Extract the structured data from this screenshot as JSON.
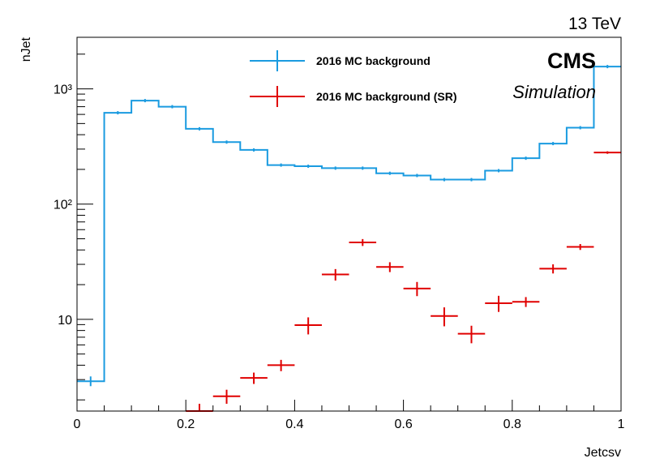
{
  "energy_label": "13 TeV",
  "experiment": "CMS",
  "sublabel": "Simulation",
  "chart_data": {
    "type": "histogram",
    "xlabel": "Jetcsv",
    "ylabel": "nJet",
    "xlim": [
      0,
      1
    ],
    "ylim": [
      1.6,
      2800
    ],
    "yscale": "log",
    "grid": false,
    "legend_position": "top-center",
    "x_ticks": [
      "0",
      "0.2",
      "0.4",
      "0.6",
      "0.8",
      "1"
    ],
    "y_ticks": [
      {
        "value": 10,
        "label": "10"
      },
      {
        "value": 100,
        "label": "10²"
      },
      {
        "value": 1000,
        "label": "10³"
      }
    ],
    "bin_edges": [
      0,
      0.05,
      0.1,
      0.15,
      0.2,
      0.25,
      0.3,
      0.35,
      0.4,
      0.45,
      0.5,
      0.55,
      0.6,
      0.65,
      0.7,
      0.75,
      0.8,
      0.85,
      0.9,
      0.95,
      1.0
    ],
    "series": [
      {
        "name": "2016 MC background",
        "style": "step",
        "color": "#1a9be0",
        "values": [
          2.9,
          620,
          790,
          700,
          450,
          345,
          295,
          218,
          213,
          205,
          205,
          185,
          177,
          163,
          163,
          195,
          250,
          335,
          460,
          1560
        ]
      },
      {
        "name": "2016 MC background (SR)",
        "style": "errorbar",
        "color": "#e00000",
        "values": [
          null,
          null,
          null,
          null,
          1.6,
          2.15,
          3.1,
          4.0,
          8.9,
          24.5,
          46.5,
          28.5,
          18.5,
          10.7,
          7.5,
          13.8,
          14.2,
          27.5,
          42.5,
          280
        ],
        "errors": [
          0,
          0,
          0,
          0,
          0.25,
          0.3,
          0.35,
          0.45,
          1.5,
          2.8,
          3.2,
          2.8,
          2.6,
          2.0,
          1.3,
          2.2,
          1.4,
          2.5,
          2.5,
          7
        ]
      }
    ]
  }
}
